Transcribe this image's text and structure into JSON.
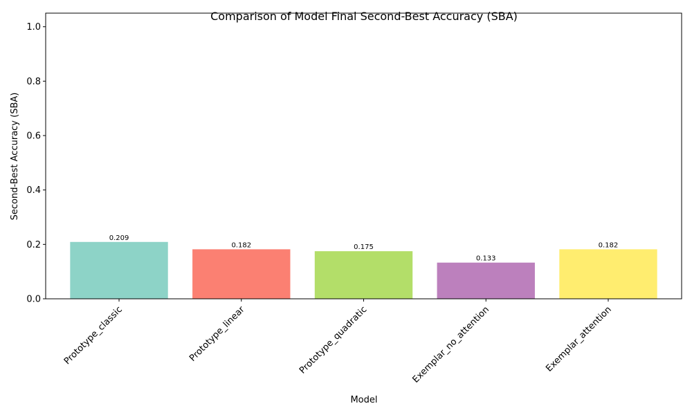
{
  "chart_data": {
    "type": "bar",
    "title": "Comparison of Model Final Second-Best Accuracy (SBA)",
    "xlabel": "Model",
    "ylabel": "Second-Best Accuracy (SBA)",
    "ylim": [
      0,
      1.05
    ],
    "yticks": [
      "0.0",
      "0.2",
      "0.4",
      "0.6",
      "0.8",
      "1.0"
    ],
    "grid": false,
    "categories": [
      "Prototype_classic",
      "Prototype_linear",
      "Prototype_quadratic",
      "Exemplar_no_attention",
      "Exemplar_attention"
    ],
    "values": [
      0.209,
      0.182,
      0.175,
      0.133,
      0.182
    ],
    "value_labels": [
      "0.209",
      "0.182",
      "0.175",
      "0.133",
      "0.182"
    ],
    "colors": [
      "#8dd3c7",
      "#fb8072",
      "#b3de69",
      "#bc80bd",
      "#ffed6f"
    ]
  }
}
